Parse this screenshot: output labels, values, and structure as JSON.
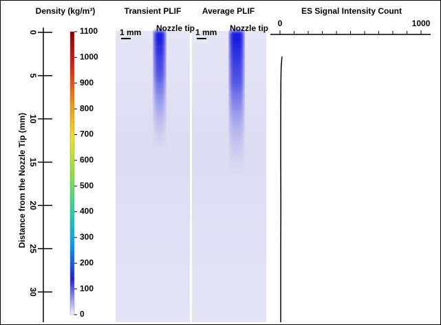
{
  "distance_axis": {
    "label": "Distance from the Nozzle Tip (mm)",
    "lim": [
      0,
      33.5
    ],
    "ticks": [
      0,
      5,
      10,
      15,
      20,
      25,
      30
    ]
  },
  "colorbar": {
    "title": "Density (kg/m³)",
    "lim": [
      0,
      1100
    ],
    "ticks": [
      0,
      100,
      200,
      300,
      400,
      500,
      600,
      700,
      800,
      900,
      1000,
      1100
    ],
    "colors": [
      "#f4f4fb",
      "#2020e0",
      "#00a0f0",
      "#30d0a0",
      "#90e040",
      "#f0e020",
      "#f09010",
      "#e02010",
      "#8b0000"
    ]
  },
  "panels": [
    {
      "title": "Transient PLIF",
      "scale_label": "1 mm",
      "annotation": "Nozzle tip"
    },
    {
      "title": "Average PLIF",
      "scale_label": "1 mm",
      "annotation": "Nozzle tip"
    }
  ],
  "chart_data": {
    "type": "line",
    "title": "ES Signal Intensity Count",
    "xlim": [
      0,
      1000
    ],
    "xticks": [
      0,
      1000
    ],
    "xminor": [
      100,
      200,
      300,
      400,
      500,
      600,
      700,
      800,
      900
    ],
    "series": [
      {
        "color": "#000000",
        "y": [
          2.8,
          4,
          6,
          10,
          15,
          20,
          25,
          30,
          33.5
        ],
        "values": [
          14,
          8,
          6,
          5,
          5,
          6,
          5,
          5,
          5
        ]
      }
    ]
  }
}
